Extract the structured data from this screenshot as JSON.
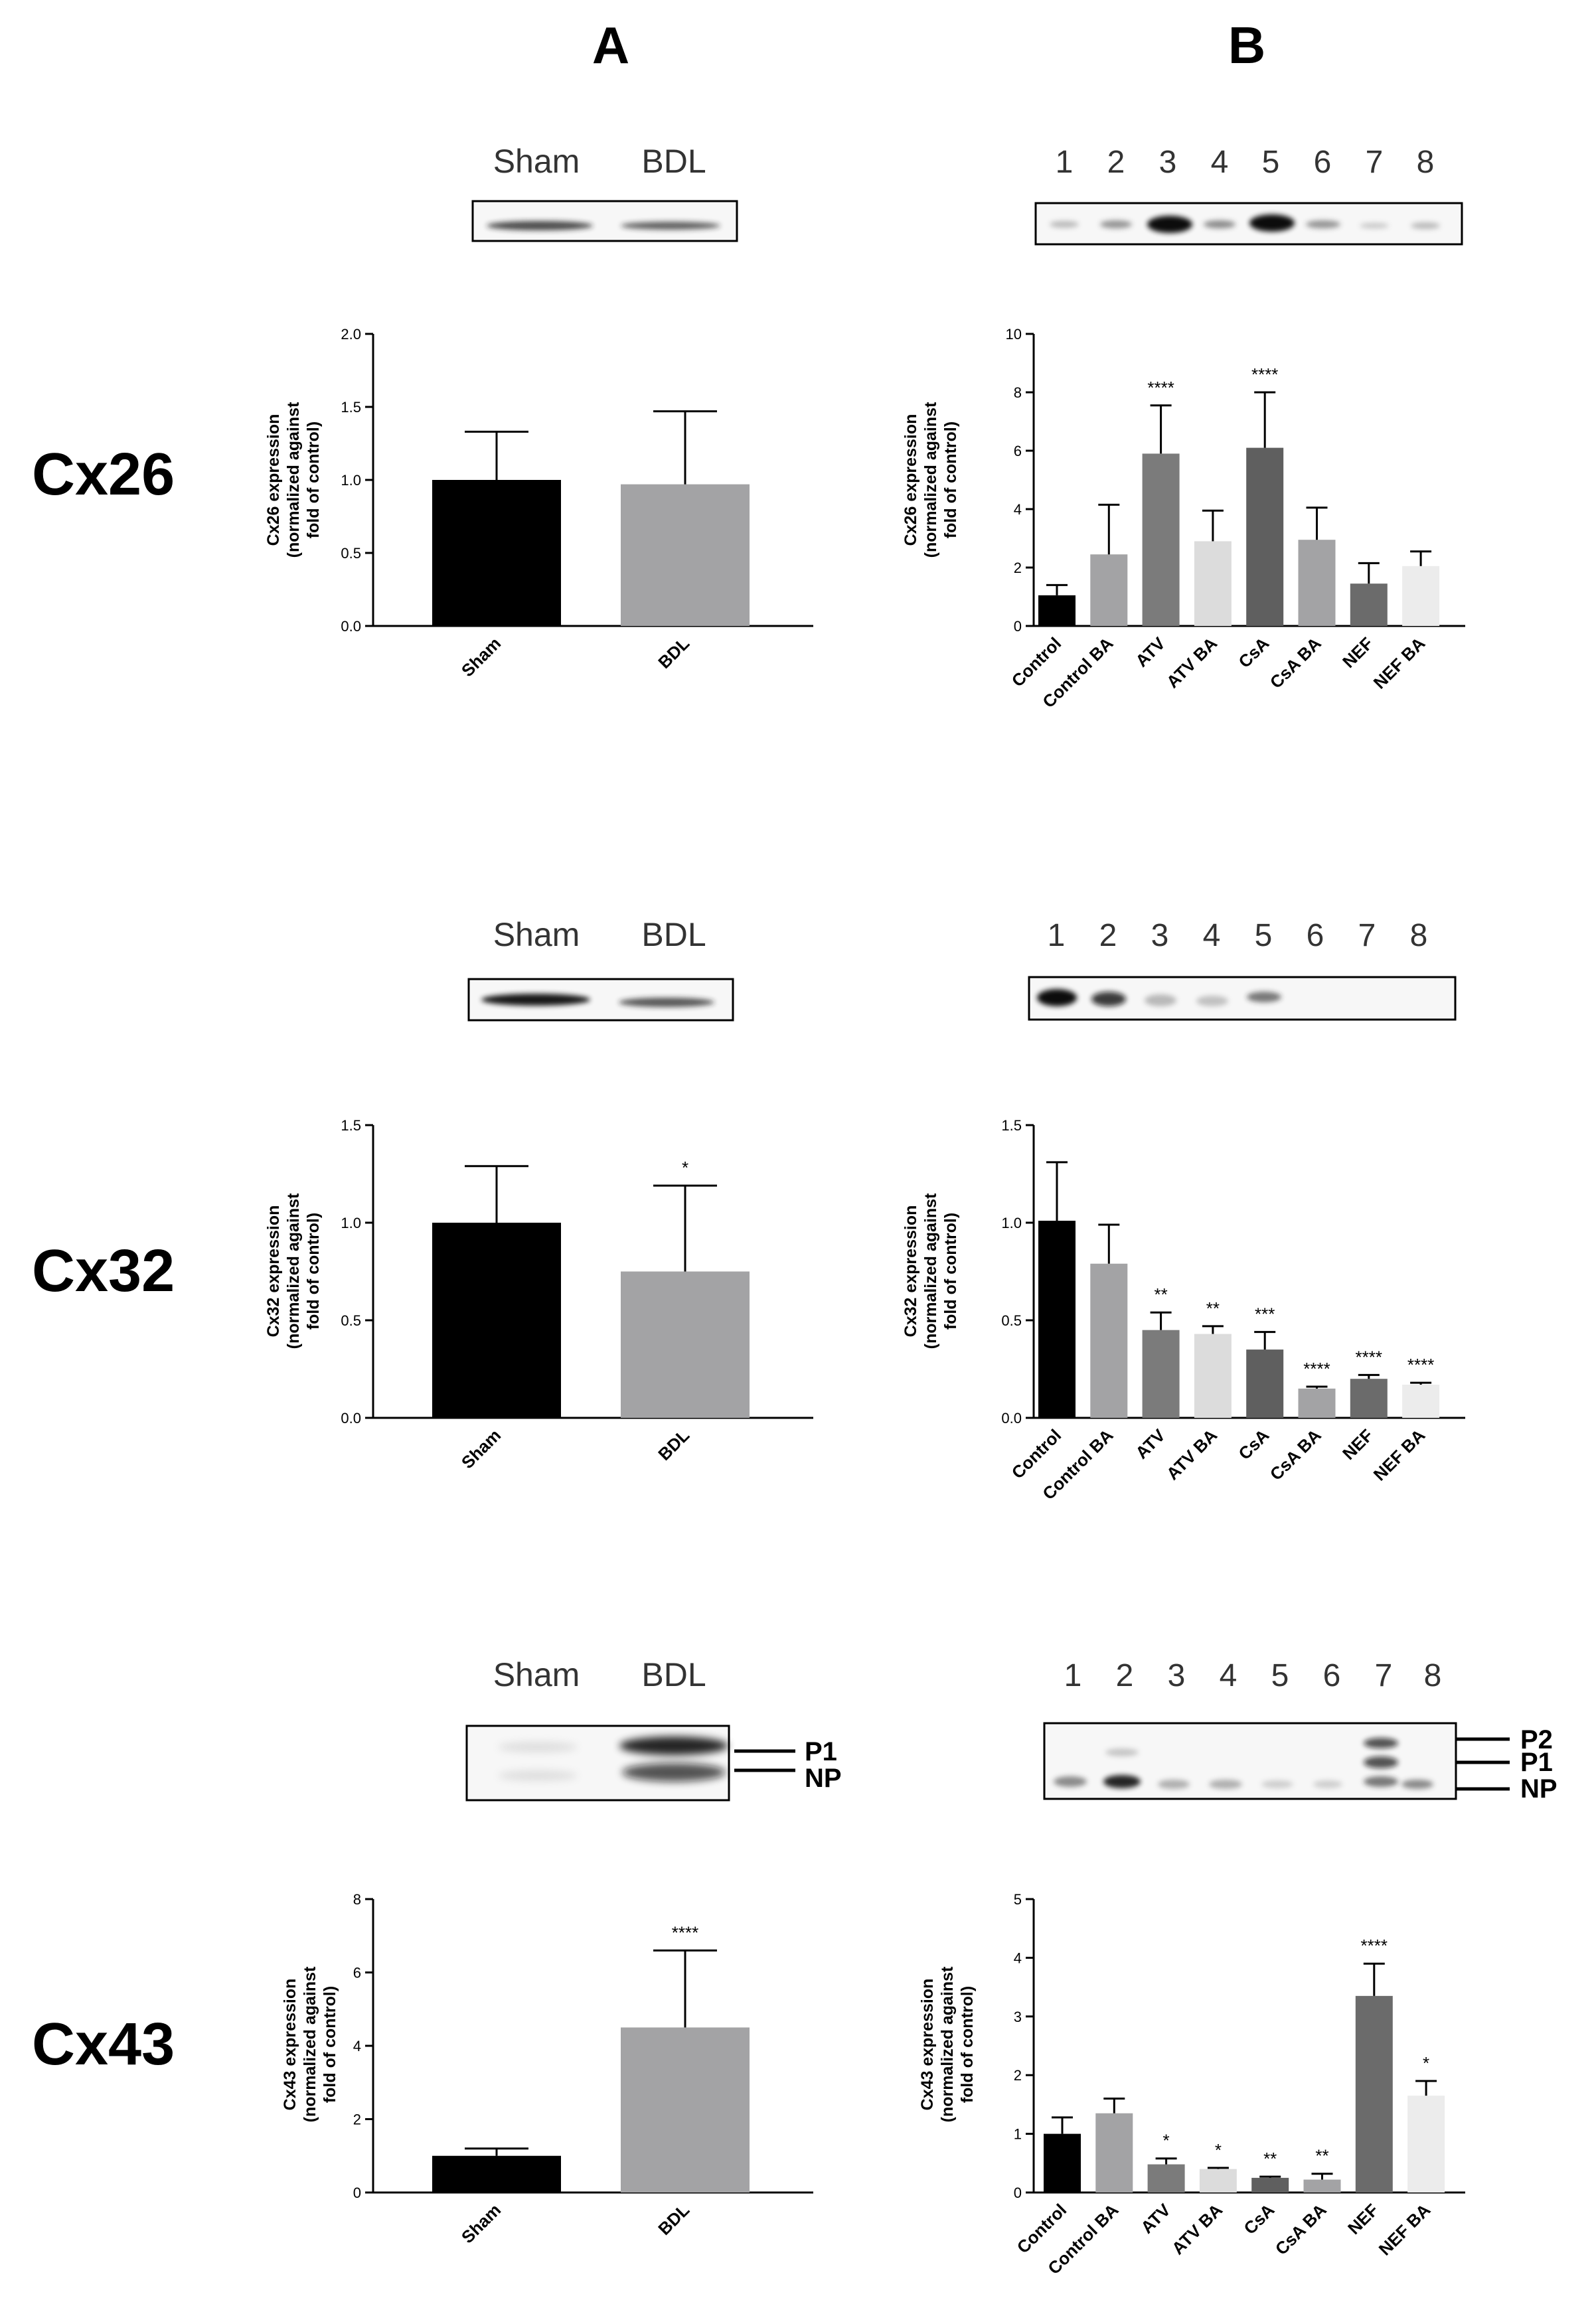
{
  "columns": {
    "a": "A",
    "b": "B"
  },
  "rows": [
    {
      "label": "Cx26"
    },
    {
      "label": "Cx32"
    },
    {
      "label": "Cx43"
    }
  ],
  "blots": {
    "a_lanes": [
      "Sham",
      "BDL"
    ],
    "b_lanes": [
      "1",
      "2",
      "3",
      "4",
      "5",
      "6",
      "7",
      "8"
    ],
    "band_labels_a_cx43": [
      "P1",
      "NP"
    ],
    "band_labels_b_cx43": [
      "P2",
      "P1",
      "NP"
    ]
  },
  "colors": {
    "black": "#000000",
    "gray_mid": "#a3a3a5",
    "gray_dark": "#7b7b7b",
    "gray_light": "#dcdcdc",
    "gray_darker": "#5f5f5f",
    "gray_medium_dark": "#6b6b6b",
    "gray_very_light": "#ececec"
  },
  "chart_data": [
    {
      "type": "bar",
      "panel": "Cx26 A",
      "categories": [
        "Sham",
        "BDL"
      ],
      "values": [
        1.0,
        0.97
      ],
      "errors": [
        0.33,
        0.5
      ],
      "significance": [
        "",
        ""
      ],
      "ylabel": "Cx26 expression\n(normalized against\nfold of control)",
      "ylim": [
        0,
        2.0
      ],
      "yticks": [
        "0.0",
        "0.5",
        "1.0",
        "1.5",
        "2.0"
      ]
    },
    {
      "type": "bar",
      "panel": "Cx26 B",
      "categories": [
        "Control",
        "Control BA",
        "ATV",
        "ATV BA",
        "CsA",
        "CsA BA",
        "NEF",
        "NEF BA"
      ],
      "values": [
        1.05,
        2.45,
        5.9,
        2.9,
        6.1,
        2.95,
        1.45,
        2.05
      ],
      "errors": [
        0.35,
        1.7,
        1.65,
        1.05,
        1.9,
        1.1,
        0.7,
        0.5
      ],
      "significance": [
        "",
        "",
        "****",
        "",
        "****",
        "",
        "",
        ""
      ],
      "ylabel": "Cx26 expression\n(normalized against\nfold of control)",
      "ylim": [
        0,
        10
      ],
      "yticks": [
        "0",
        "2",
        "4",
        "6",
        "8",
        "10"
      ]
    },
    {
      "type": "bar",
      "panel": "Cx32 A",
      "categories": [
        "Sham",
        "BDL"
      ],
      "values": [
        1.0,
        0.75
      ],
      "errors": [
        0.29,
        0.44
      ],
      "significance": [
        "",
        "*"
      ],
      "ylabel": "Cx32 expression\n(normalized against\nfold of control)",
      "ylim": [
        0,
        1.5
      ],
      "yticks": [
        "0.0",
        "0.5",
        "1.0",
        "1.5"
      ]
    },
    {
      "type": "bar",
      "panel": "Cx32 B",
      "categories": [
        "Control",
        "Control BA",
        "ATV",
        "ATV BA",
        "CsA",
        "CsA BA",
        "NEF",
        "NEF BA"
      ],
      "values": [
        1.01,
        0.79,
        0.45,
        0.43,
        0.35,
        0.15,
        0.2,
        0.17
      ],
      "errors": [
        0.3,
        0.2,
        0.09,
        0.04,
        0.09,
        0.01,
        0.02,
        0.01
      ],
      "significance": [
        "",
        "",
        "**",
        "**",
        "***",
        "****",
        "****",
        "****"
      ],
      "ylabel": "Cx32 expression\n(normalized against\nfold of control)",
      "ylim": [
        0,
        1.5
      ],
      "yticks": [
        "0.0",
        "0.5",
        "1.0",
        "1.5"
      ]
    },
    {
      "type": "bar",
      "panel": "Cx43 A",
      "categories": [
        "Sham",
        "BDL"
      ],
      "values": [
        1.0,
        4.5
      ],
      "errors": [
        0.2,
        2.1
      ],
      "significance": [
        "",
        "****"
      ],
      "ylabel": "Cx43 expression\n(normalized against\nfold of control)",
      "ylim": [
        0,
        8
      ],
      "yticks": [
        "0",
        "2",
        "4",
        "6",
        "8"
      ]
    },
    {
      "type": "bar",
      "panel": "Cx43 B",
      "categories": [
        "Control",
        "Control BA",
        "ATV",
        "ATV BA",
        "CsA",
        "CsA BA",
        "NEF",
        "NEF BA"
      ],
      "values": [
        1.0,
        1.35,
        0.48,
        0.4,
        0.25,
        0.22,
        3.35,
        1.65
      ],
      "errors": [
        0.28,
        0.25,
        0.1,
        0.02,
        0.02,
        0.1,
        0.55,
        0.25
      ],
      "significance": [
        "",
        "",
        "*",
        "*",
        "**",
        "**",
        "****",
        "*"
      ],
      "ylabel": "Cx43 expression\n(normalized against\nfold of control)",
      "ylim": [
        0,
        5
      ],
      "yticks": [
        "0",
        "1",
        "2",
        "3",
        "4",
        "5"
      ]
    }
  ]
}
